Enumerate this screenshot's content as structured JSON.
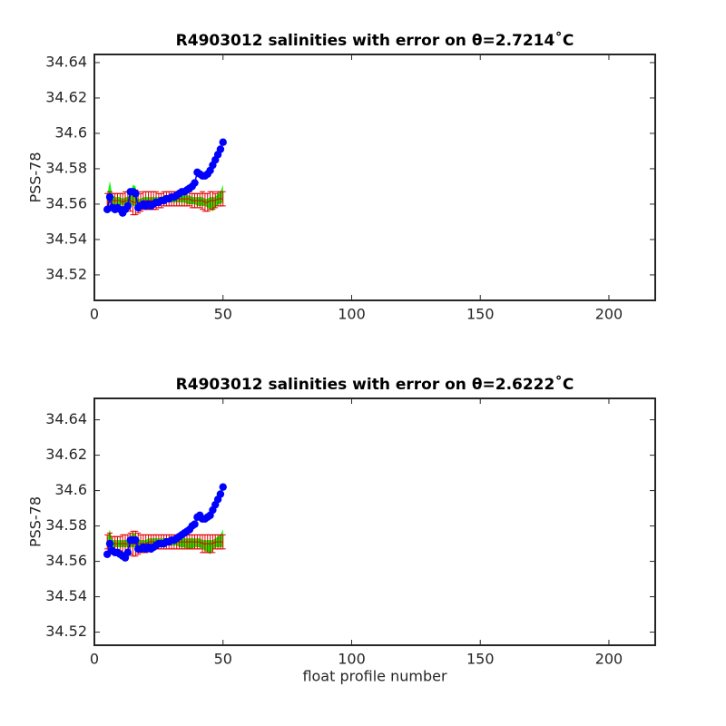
{
  "chart_data": [
    {
      "type": "scatter",
      "title": "R4903012 salinities with error on θ=2.7214˚C",
      "ylabel": "PSS-78",
      "xlim": [
        0,
        218
      ],
      "ylim": [
        34.5056,
        34.6446
      ],
      "xticks": [
        0,
        50,
        100,
        150,
        200
      ],
      "yticks": [
        34.52,
        34.54,
        34.56,
        34.58,
        34.6,
        34.62,
        34.64
      ],
      "x": [
        5,
        6,
        7,
        8,
        9,
        10,
        11,
        12,
        13,
        14,
        15,
        16,
        17,
        18,
        19,
        20,
        21,
        22,
        23,
        24,
        25,
        26,
        27,
        28,
        29,
        30,
        31,
        32,
        33,
        34,
        35,
        36,
        37,
        38,
        39,
        40,
        41,
        42,
        43,
        44,
        45,
        46,
        47,
        48,
        49,
        50
      ],
      "series": [
        {
          "style": "band",
          "color": "#00ff00",
          "lower": [
            34.56,
            34.561,
            34.56,
            34.56,
            34.56,
            34.56,
            34.559,
            34.56,
            34.56,
            34.56,
            34.559,
            34.559,
            34.559,
            34.559,
            34.56,
            34.56,
            34.56,
            34.56,
            34.56,
            34.56,
            34.56,
            34.56,
            34.561,
            34.561,
            34.561,
            34.561,
            34.561,
            34.561,
            34.561,
            34.561,
            34.561,
            34.56,
            34.56,
            34.56,
            34.56,
            34.559,
            34.559,
            34.559,
            34.559,
            34.558,
            34.557,
            34.556,
            34.558,
            34.56,
            34.56,
            34.561
          ],
          "upper": [
            34.565,
            34.573,
            34.565,
            34.564,
            34.564,
            34.564,
            34.563,
            34.564,
            34.564,
            34.566,
            34.571,
            34.57,
            34.563,
            34.563,
            34.564,
            34.564,
            34.564,
            34.564,
            34.564,
            34.564,
            34.564,
            34.564,
            34.565,
            34.565,
            34.565,
            34.565,
            34.565,
            34.565,
            34.565,
            34.565,
            34.565,
            34.565,
            34.565,
            34.564,
            34.564,
            34.564,
            34.564,
            34.564,
            34.563,
            34.563,
            34.564,
            34.564,
            34.564,
            34.566,
            34.567,
            34.571
          ]
        },
        {
          "style": "errorbar",
          "color": "#e00000",
          "values": [
            34.562,
            34.563,
            34.562,
            34.562,
            34.562,
            34.562,
            34.561,
            34.562,
            34.562,
            34.562,
            34.561,
            34.561,
            34.561,
            34.561,
            34.562,
            34.562,
            34.562,
            34.562,
            34.562,
            34.562,
            34.562,
            34.562,
            34.563,
            34.563,
            34.563,
            34.563,
            34.563,
            34.563,
            34.563,
            34.563,
            34.563,
            34.563,
            34.563,
            34.562,
            34.562,
            34.562,
            34.562,
            34.562,
            34.561,
            34.561,
            34.562,
            34.562,
            34.562,
            34.563,
            34.563,
            34.563
          ],
          "errors": [
            0.004,
            0.004,
            0.004,
            0.004,
            0.004,
            0.004,
            0.005,
            0.005,
            0.005,
            0.006,
            0.007,
            0.007,
            0.006,
            0.005,
            0.005,
            0.005,
            0.005,
            0.005,
            0.005,
            0.005,
            0.004,
            0.004,
            0.004,
            0.004,
            0.004,
            0.004,
            0.004,
            0.004,
            0.004,
            0.004,
            0.004,
            0.004,
            0.004,
            0.004,
            0.004,
            0.004,
            0.004,
            0.005,
            0.005,
            0.005,
            0.005,
            0.005,
            0.004,
            0.004,
            0.004,
            0.004
          ]
        },
        {
          "style": "markers",
          "color": "#0000ff",
          "values": [
            34.557,
            34.564,
            34.558,
            34.557,
            34.558,
            34.557,
            34.555,
            34.557,
            34.559,
            34.567,
            34.567,
            34.566,
            34.558,
            34.559,
            34.56,
            34.559,
            34.56,
            34.559,
            34.56,
            34.561,
            34.561,
            34.562,
            34.562,
            34.563,
            34.563,
            34.564,
            34.564,
            34.565,
            34.566,
            34.567,
            34.567,
            34.568,
            34.569,
            34.57,
            34.572,
            34.578,
            34.577,
            34.576,
            34.576,
            34.577,
            34.579,
            34.582,
            34.585,
            34.588,
            34.591,
            34.595
          ]
        }
      ]
    },
    {
      "type": "scatter",
      "title": "R4903012 salinities with error on θ=2.6222˚C",
      "ylabel": "PSS-78",
      "xlabel": "float profile number",
      "xlim": [
        0,
        218
      ],
      "ylim": [
        34.5126,
        34.6521
      ],
      "xticks": [
        0,
        50,
        100,
        150,
        200
      ],
      "yticks": [
        34.52,
        34.54,
        34.56,
        34.58,
        34.6,
        34.62,
        34.64
      ],
      "x": [
        5,
        6,
        7,
        8,
        9,
        10,
        11,
        12,
        13,
        14,
        15,
        16,
        17,
        18,
        19,
        20,
        21,
        22,
        23,
        24,
        25,
        26,
        27,
        28,
        29,
        30,
        31,
        32,
        33,
        34,
        35,
        36,
        37,
        38,
        39,
        40,
        41,
        42,
        43,
        44,
        45,
        46,
        47,
        48,
        49,
        50
      ],
      "series": [
        {
          "style": "band",
          "color": "#00ff00",
          "lower": [
            34.568,
            34.569,
            34.568,
            34.568,
            34.568,
            34.568,
            34.568,
            34.568,
            34.568,
            34.568,
            34.568,
            34.568,
            34.568,
            34.568,
            34.568,
            34.568,
            34.569,
            34.569,
            34.569,
            34.569,
            34.569,
            34.569,
            34.569,
            34.569,
            34.569,
            34.569,
            34.569,
            34.569,
            34.568,
            34.568,
            34.568,
            34.567,
            34.567,
            34.567,
            34.568,
            34.568,
            34.568,
            34.567,
            34.566,
            34.565,
            34.564,
            34.566,
            34.568,
            34.568,
            34.568,
            34.568
          ],
          "upper": [
            34.573,
            34.578,
            34.572,
            34.572,
            34.572,
            34.572,
            34.572,
            34.572,
            34.572,
            34.574,
            34.576,
            34.576,
            34.572,
            34.572,
            34.572,
            34.572,
            34.573,
            34.573,
            34.573,
            34.573,
            34.573,
            34.573,
            34.573,
            34.573,
            34.573,
            34.573,
            34.573,
            34.573,
            34.573,
            34.573,
            34.573,
            34.573,
            34.573,
            34.573,
            34.573,
            34.573,
            34.573,
            34.572,
            34.572,
            34.572,
            34.572,
            34.572,
            34.573,
            34.574,
            34.575,
            34.578
          ]
        },
        {
          "style": "errorbar",
          "color": "#e00000",
          "values": [
            34.571,
            34.572,
            34.57,
            34.57,
            34.57,
            34.57,
            34.57,
            34.57,
            34.57,
            34.57,
            34.57,
            34.57,
            34.57,
            34.57,
            34.57,
            34.57,
            34.571,
            34.571,
            34.571,
            34.571,
            34.571,
            34.571,
            34.571,
            34.571,
            34.571,
            34.571,
            34.571,
            34.571,
            34.571,
            34.571,
            34.571,
            34.571,
            34.571,
            34.571,
            34.571,
            34.571,
            34.571,
            34.57,
            34.57,
            34.57,
            34.57,
            34.57,
            34.571,
            34.571,
            34.571,
            34.571
          ],
          "errors": [
            0.004,
            0.004,
            0.004,
            0.004,
            0.004,
            0.004,
            0.005,
            0.005,
            0.005,
            0.006,
            0.007,
            0.007,
            0.006,
            0.005,
            0.005,
            0.005,
            0.004,
            0.004,
            0.004,
            0.004,
            0.004,
            0.004,
            0.004,
            0.004,
            0.004,
            0.004,
            0.004,
            0.004,
            0.004,
            0.004,
            0.004,
            0.004,
            0.004,
            0.004,
            0.004,
            0.004,
            0.004,
            0.005,
            0.005,
            0.005,
            0.005,
            0.005,
            0.004,
            0.004,
            0.004,
            0.004
          ]
        },
        {
          "style": "markers",
          "color": "#0000ff",
          "values": [
            34.564,
            34.57,
            34.566,
            34.565,
            34.565,
            34.564,
            34.563,
            34.562,
            34.565,
            34.572,
            34.572,
            34.572,
            34.567,
            34.567,
            34.568,
            34.567,
            34.568,
            34.567,
            34.568,
            34.569,
            34.57,
            34.57,
            34.57,
            34.571,
            34.571,
            34.572,
            34.572,
            34.573,
            34.574,
            34.575,
            34.576,
            34.577,
            34.578,
            34.58,
            34.581,
            34.585,
            34.586,
            34.584,
            34.584,
            34.585,
            34.586,
            34.589,
            34.592,
            34.595,
            34.598,
            34.602
          ]
        }
      ]
    }
  ]
}
